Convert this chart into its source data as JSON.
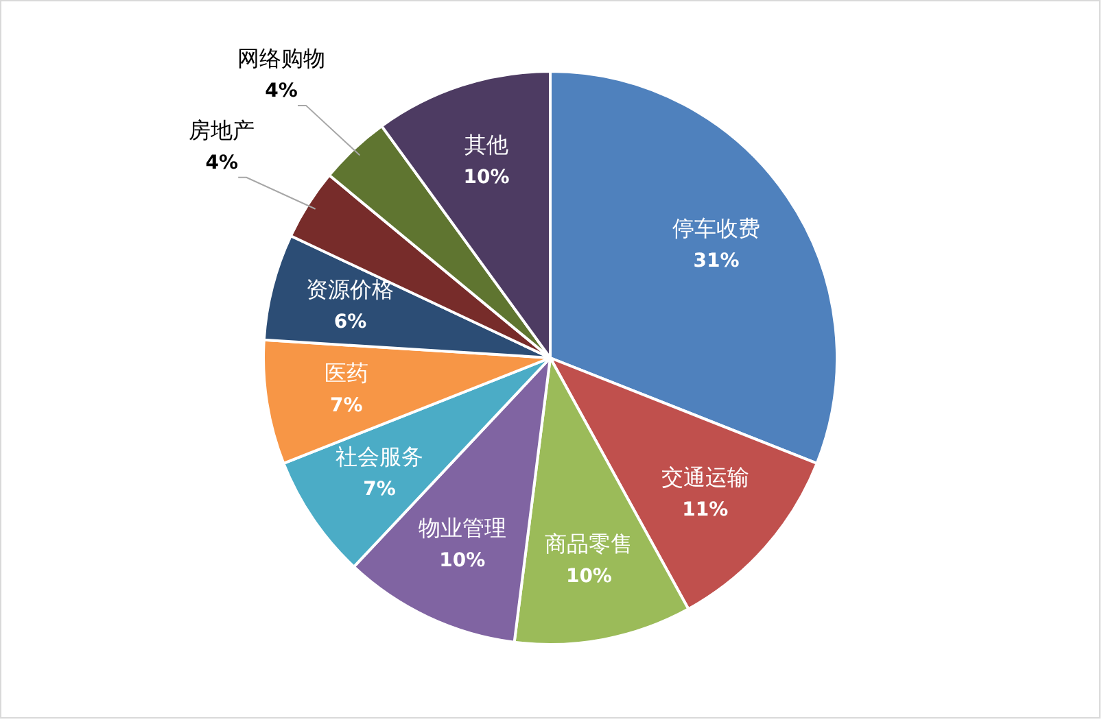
{
  "chart_data": {
    "type": "pie",
    "categories": [
      "停车收费",
      "交通运输",
      "商品零售",
      "物业管理",
      "社会服务",
      "医药",
      "资源价格",
      "房地产",
      "网络购物",
      "其他"
    ],
    "values": [
      31,
      11,
      10,
      10,
      7,
      7,
      6,
      4,
      4,
      10
    ],
    "colors": [
      "#4f81bd",
      "#c0504d",
      "#9bbb59",
      "#8064a2",
      "#4bacc6",
      "#f79646",
      "#2c4d75",
      "#772c2a",
      "#5f7530",
      "#4d3b62"
    ],
    "value_labels": [
      "31%",
      "11%",
      "10%",
      "10%",
      "7%",
      "7%",
      "6%",
      "4%",
      "4%",
      "10%"
    ],
    "legend": false
  }
}
